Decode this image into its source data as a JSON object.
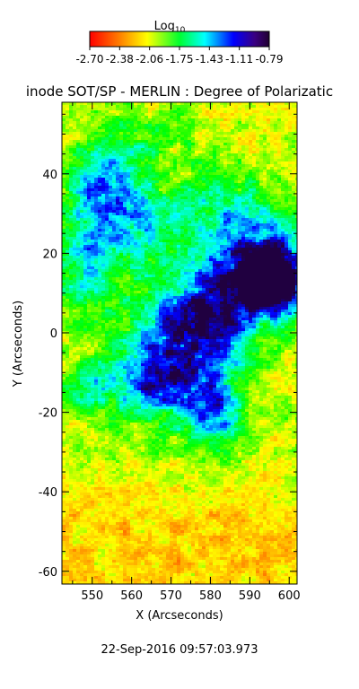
{
  "colorbar": {
    "title": "Log",
    "title_sub": "10",
    "tick_labels": [
      "-2.70",
      "-2.38",
      "-2.06",
      "-1.75",
      "-1.43",
      "-1.11",
      "-0.79"
    ]
  },
  "plot": {
    "title": "inode SOT/SP - MERLIN : Degree of Polarizatic",
    "xlabel": "X (Arcseconds)",
    "ylabel": "Y (Arcseconds)",
    "x_ticks": [
      "550",
      "560",
      "570",
      "580",
      "590",
      "600"
    ],
    "y_ticks": [
      "40",
      "20",
      "0",
      "-20",
      "-40",
      "-60"
    ],
    "timestamp": "22-Sep-2016 09:57:03.973"
  },
  "chart_data": {
    "type": "heatmap",
    "title": "inode SOT/SP - MERLIN : Degree of Polarizatic",
    "xlabel": "X (Arcseconds)",
    "ylabel": "Y (Arcseconds)",
    "xlim": [
      542.3,
      602.0
    ],
    "ylim": [
      -63.2,
      58.0
    ],
    "color_range": [
      -2.7,
      -0.79
    ],
    "colormap": [
      "#ff0000",
      "#ff8000",
      "#ffff00",
      "#00ff00",
      "#00ffff",
      "#0000ff",
      "#200040"
    ]
  }
}
